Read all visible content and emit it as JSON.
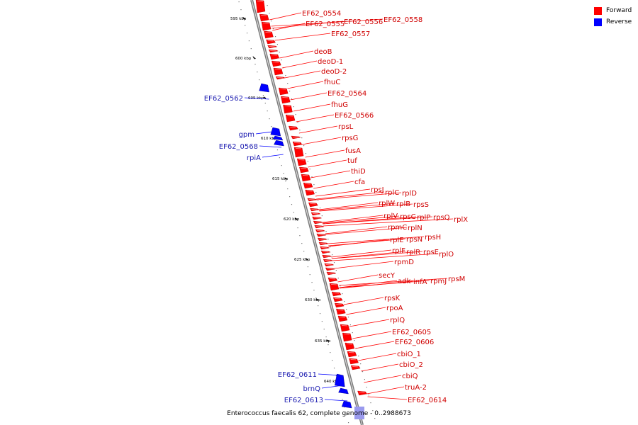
{
  "legend": {
    "forward_label": "Forward",
    "reverse_label": "Reverse",
    "forward_color": "#ff0000",
    "reverse_color": "#0000ff"
  },
  "caption": "Enterococcus faecalis 62, complete genome - 0..2988673",
  "ticks": [
    "595 kbp",
    "600 kbp",
    "605 kbp",
    "610 kbp",
    "615 kbp",
    "620 kbp",
    "625 kbp",
    "630 kbp",
    "635 kbp",
    "640 kbp"
  ],
  "forward_genes": [
    "EF62_0554",
    "EF62_0555",
    "EF62_0556",
    "EF62_0558",
    "EF62_0557",
    "deoB",
    "deoD-1",
    "deoD-2",
    "fhuC",
    "EF62_0564",
    "fhuG",
    "EF62_0566",
    "rpsL",
    "rpsG",
    "fusA",
    "tuf",
    "thiD",
    "cfa",
    "rpsJ",
    "rplC",
    "rplD",
    "rplW",
    "rplB",
    "rpsS",
    "rplV",
    "rpsC",
    "rplP",
    "rpsQ",
    "rplX",
    "rpmC",
    "rplN",
    "rplE",
    "rpsN",
    "rpsH",
    "rplF",
    "rplR",
    "rpsE",
    "rplO",
    "rpmD",
    "secY",
    "adk",
    "infA",
    "rpmJ",
    "rpsM",
    "rpsK",
    "rpoA",
    "rplQ",
    "EF62_0605",
    "EF62_0606",
    "cbiO_1",
    "cbiO_2",
    "cbiQ",
    "truA-2",
    "EF62_0614"
  ],
  "reverse_genes": [
    "EF62_0562",
    "gpm",
    "EF62_0568",
    "rpiA",
    "EF62_0611",
    "brnQ",
    "EF62_0613"
  ]
}
